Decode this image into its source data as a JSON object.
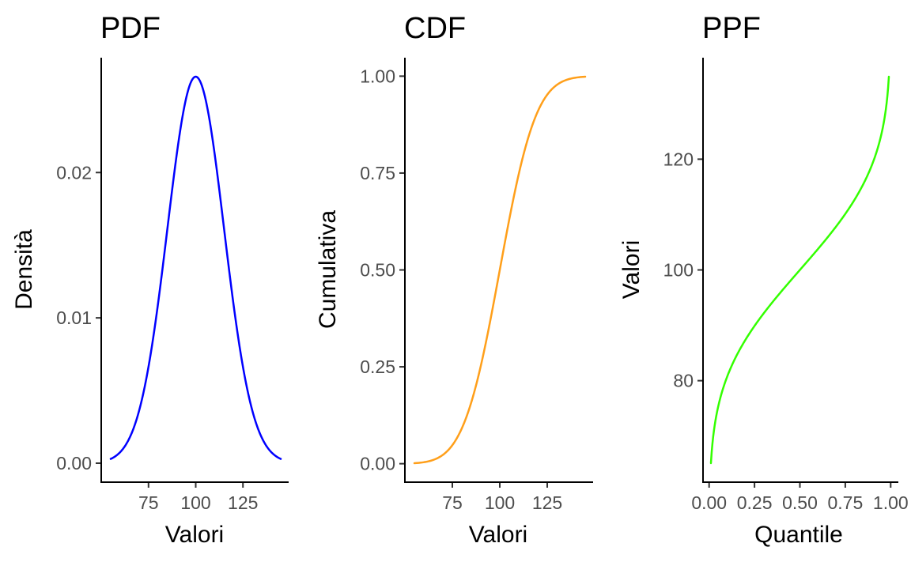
{
  "chart_data": [
    {
      "type": "line",
      "title": "PDF",
      "xlabel": "Valori",
      "ylabel": "Densità",
      "xlim": [
        55,
        145
      ],
      "ylim": [
        0,
        0.02659615
      ],
      "xticks": [
        75,
        100,
        125
      ],
      "xtick_labels": [
        "75",
        "100",
        "125"
      ],
      "yticks": [
        0,
        0.01,
        0.02
      ],
      "ytick_labels": [
        "0.00",
        "0.01",
        "0.02"
      ],
      "color": "#0000ff",
      "grid": false,
      "legend": "none",
      "series": [
        {
          "x": [
            55,
            60,
            65,
            70,
            75,
            80,
            85,
            90,
            95,
            100,
            105,
            110,
            115,
            120,
            125,
            130,
            135,
            140,
            145
          ],
          "y": [
            0.00029,
            0.00073,
            0.00171,
            0.0036,
            0.00664,
            0.01093,
            0.01611,
            0.0213,
            0.02516,
            0.0266,
            0.02516,
            0.0213,
            0.01611,
            0.01093,
            0.00664,
            0.0036,
            0.00171,
            0.00073,
            0.00029
          ]
        }
      ]
    },
    {
      "type": "line",
      "title": "CDF",
      "xlabel": "Valori",
      "ylabel": "Cumulativa",
      "xlim": [
        55,
        145
      ],
      "ylim": [
        0.0013,
        0.9987
      ],
      "xticks": [
        75,
        100,
        125
      ],
      "xtick_labels": [
        "75",
        "100",
        "125"
      ],
      "yticks": [
        0,
        0.25,
        0.5,
        0.75,
        1
      ],
      "ytick_labels": [
        "0.00",
        "0.25",
        "0.50",
        "0.75",
        "1.00"
      ],
      "color": "#ff9f1a",
      "grid": false,
      "legend": "none",
      "series": [
        {
          "x": [
            55,
            60,
            65,
            70,
            75,
            80,
            85,
            90,
            95,
            100,
            105,
            110,
            115,
            120,
            125,
            130,
            135,
            140,
            145
          ],
          "y": [
            0.0013,
            0.0038,
            0.0098,
            0.0228,
            0.0478,
            0.0912,
            0.1587,
            0.2525,
            0.3694,
            0.5,
            0.6306,
            0.7475,
            0.8413,
            0.9088,
            0.9522,
            0.9772,
            0.9902,
            0.9962,
            0.9987
          ]
        }
      ]
    },
    {
      "type": "line",
      "title": "PPF",
      "xlabel": "Quantile",
      "ylabel": "Valori",
      "xlim": [
        0.01,
        0.99
      ],
      "ylim": [
        65.1,
        134.9
      ],
      "xticks": [
        0,
        0.25,
        0.5,
        0.75,
        1
      ],
      "xtick_labels": [
        "0.00",
        "0.25",
        "0.50",
        "0.75",
        "1.00"
      ],
      "yticks": [
        80,
        100,
        120
      ],
      "ytick_labels": [
        "80",
        "100",
        "120"
      ],
      "color": "#33ff00",
      "grid": false,
      "legend": "none",
      "series": [
        {
          "x": [
            0.01,
            0.02,
            0.05,
            0.1,
            0.15,
            0.2,
            0.25,
            0.3,
            0.4,
            0.5,
            0.6,
            0.7,
            0.75,
            0.8,
            0.85,
            0.9,
            0.95,
            0.98,
            0.99
          ],
          "y": [
            65.1,
            69.2,
            75.3,
            80.8,
            84.5,
            87.4,
            89.9,
            92.1,
            96.2,
            100,
            103.8,
            107.9,
            110.1,
            112.6,
            115.5,
            119.2,
            124.7,
            130.8,
            134.9
          ]
        }
      ]
    }
  ]
}
